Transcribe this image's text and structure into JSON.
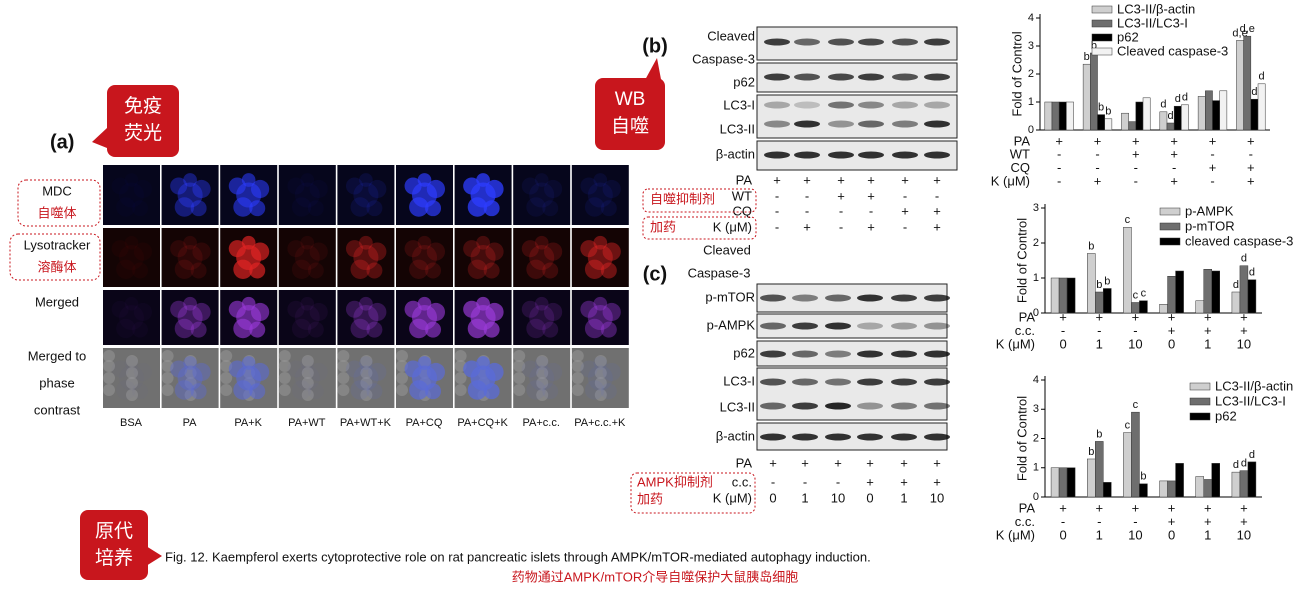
{
  "callouts": [
    [
      "免疫",
      "荧光"
    ],
    [
      "WB",
      "自噬"
    ],
    [
      "原代",
      "培养"
    ]
  ],
  "panel_a": {
    "label": "(a)",
    "row_labels": [
      [
        "MDC",
        "自噬体"
      ],
      [
        "Lysotracker",
        "溶酶体"
      ],
      [
        "Merged"
      ],
      [
        "Merged to",
        "phase",
        "contrast"
      ]
    ],
    "column_labels": [
      "BSA",
      "PA",
      "PA+K",
      "PA+WT",
      "PA+WT+K",
      "PA+CQ",
      "PA+CQ+K",
      "PA+c.c.",
      "PA+c.c.+K"
    ]
  },
  "panel_b": {
    "label": "(b)",
    "blot_labels": [
      "Cleaved",
      "Caspase-3",
      "p62",
      "LC3-I",
      "LC3-II",
      "β-actin"
    ],
    "conditions": [
      {
        "label": "PA",
        "values": [
          "+",
          "+",
          "+",
          "+",
          "+",
          "+"
        ]
      },
      {
        "label": "WT",
        "values": [
          "-",
          "-",
          "+",
          "+",
          "-",
          "-"
        ]
      },
      {
        "label": "CQ",
        "values": [
          "-",
          "-",
          "-",
          "-",
          "+",
          "+"
        ]
      },
      {
        "label": "K (μM)",
        "values": [
          "-",
          "+",
          "-",
          "+",
          "-",
          "+"
        ]
      }
    ],
    "annotations": [
      "自噬抑制剂",
      "加药"
    ]
  },
  "panel_c": {
    "label": "(c)",
    "blot_labels": [
      "Cleaved",
      "Caspase-3",
      "p-mTOR",
      "p-AMPK",
      "p62",
      "LC3-I",
      "LC3-II",
      "β-actin"
    ],
    "conditions": [
      {
        "label": "PA",
        "values": [
          "+",
          "+",
          "+",
          "+",
          "+",
          "+"
        ]
      },
      {
        "label": "c.c.",
        "values": [
          "-",
          "-",
          "-",
          "+",
          "+",
          "+"
        ]
      },
      {
        "label": "K (μM)",
        "values": [
          "0",
          "1",
          "10",
          "0",
          "1",
          "10"
        ]
      }
    ],
    "annotations": [
      "AMPK抑制剂",
      "加药"
    ]
  },
  "caption": [
    "Fig. 12. Kaempferol exerts cytoprotective role on rat pancreatic islets through AMPK/mTOR-mediated autophagy induction.",
    "药物通过AMPK/mTOR介导自噬保护大鼠胰岛细胞"
  ],
  "chart_data": [
    {
      "type": "bar",
      "y_label": "Fold of Control",
      "ylim": [
        0,
        4
      ],
      "yticks": [
        0,
        1,
        2,
        3,
        4
      ],
      "conditions": [
        {
          "label": "PA",
          "values": [
            "+",
            "+",
            "+",
            "+",
            "+",
            "+"
          ]
        },
        {
          "label": "WT",
          "values": [
            "-",
            "-",
            "+",
            "+",
            "-",
            "-"
          ]
        },
        {
          "label": "CQ",
          "values": [
            "-",
            "-",
            "-",
            "-",
            "+",
            "+"
          ]
        },
        {
          "label": "K (μM)",
          "values": [
            "-",
            "+",
            "-",
            "+",
            "-",
            "+"
          ]
        }
      ],
      "series": [
        {
          "name": "LC3-II/β-actin",
          "color": "#cfcfcf",
          "values": [
            1,
            2.35,
            0.6,
            0.65,
            1.2,
            3.2
          ],
          "sig": [
            null,
            "b",
            null,
            "d",
            null,
            "d,e"
          ]
        },
        {
          "name": "LC3-II/LC3-I",
          "color": "#6e6e6e",
          "values": [
            1,
            2.75,
            0.3,
            0.25,
            1.4,
            3.35
          ],
          "sig": [
            null,
            "b",
            null,
            "d",
            null,
            "d,e"
          ]
        },
        {
          "name": "p62",
          "color": "#000000",
          "values": [
            1,
            0.55,
            1.0,
            0.85,
            1.05,
            1.1
          ],
          "sig": [
            null,
            "b",
            null,
            "d",
            null,
            "d"
          ]
        },
        {
          "name": "Cleaved caspase-3",
          "color": "#f2f2f2",
          "values": [
            1,
            0.4,
            1.15,
            0.9,
            1.4,
            1.65
          ],
          "sig": [
            null,
            "b",
            null,
            "d",
            null,
            "d"
          ]
        }
      ]
    },
    {
      "type": "bar",
      "y_label": "Fold of Control",
      "ylim": [
        0,
        3
      ],
      "yticks": [
        0,
        1,
        2,
        3
      ],
      "conditions": [
        {
          "label": "PA",
          "values": [
            "+",
            "+",
            "+",
            "+",
            "+",
            "+"
          ]
        },
        {
          "label": "c.c.",
          "values": [
            "-",
            "-",
            "-",
            "+",
            "+",
            "+"
          ]
        },
        {
          "label": "K (μM)",
          "values": [
            "0",
            "1",
            "10",
            "0",
            "1",
            "10"
          ]
        }
      ],
      "series": [
        {
          "name": "p-AMPK",
          "color": "#cfcfcf",
          "values": [
            1,
            1.7,
            2.45,
            0.25,
            0.35,
            0.6
          ],
          "sig": [
            null,
            "b",
            "c",
            null,
            null,
            "d"
          ]
        },
        {
          "name": "p-mTOR",
          "color": "#6e6e6e",
          "values": [
            1,
            0.6,
            0.3,
            1.05,
            1.25,
            1.35
          ],
          "sig": [
            null,
            "b",
            "c",
            null,
            null,
            "d"
          ]
        },
        {
          "name": "cleaved caspase-3",
          "color": "#000000",
          "values": [
            1,
            0.7,
            0.35,
            1.2,
            1.2,
            0.95
          ],
          "sig": [
            null,
            "b",
            "c",
            null,
            null,
            "d"
          ]
        }
      ]
    },
    {
      "type": "bar",
      "y_label": "Fold of Control",
      "ylim": [
        0,
        4
      ],
      "yticks": [
        0,
        1,
        2,
        3,
        4
      ],
      "conditions": [
        {
          "label": "PA",
          "values": [
            "+",
            "+",
            "+",
            "+",
            "+",
            "+"
          ]
        },
        {
          "label": "c.c.",
          "values": [
            "-",
            "-",
            "-",
            "+",
            "+",
            "+"
          ]
        },
        {
          "label": "K (μM)",
          "values": [
            "0",
            "1",
            "10",
            "0",
            "1",
            "10"
          ]
        }
      ],
      "series": [
        {
          "name": "LC3-II/β-actin",
          "color": "#cfcfcf",
          "values": [
            1,
            1.3,
            2.2,
            0.55,
            0.7,
            0.85
          ],
          "sig": [
            null,
            "b",
            "c",
            null,
            null,
            "d"
          ]
        },
        {
          "name": "LC3-II/LC3-I",
          "color": "#6e6e6e",
          "values": [
            1,
            1.9,
            2.9,
            0.55,
            0.6,
            0.9
          ],
          "sig": [
            null,
            "b",
            "c",
            null,
            null,
            "d"
          ]
        },
        {
          "name": "p62",
          "color": "#000000",
          "values": [
            1,
            0.5,
            0.45,
            1.15,
            1.15,
            1.2
          ],
          "sig": [
            null,
            null,
            "b",
            null,
            null,
            "d"
          ]
        }
      ]
    }
  ]
}
